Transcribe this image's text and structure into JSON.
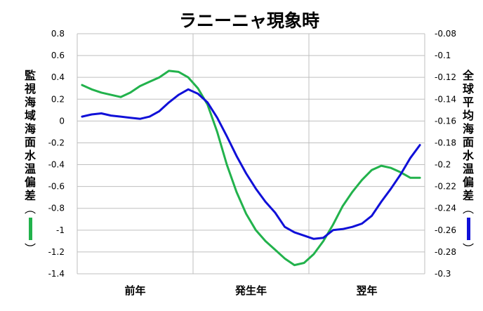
{
  "chart_data": {
    "type": "line",
    "title": "ラニーニャ現象時",
    "categories": [
      "前年",
      "発生年",
      "翌年"
    ],
    "colors": {
      "monitor": "#22b24c",
      "global": "#1010d8",
      "grid": "#bfbfbf"
    },
    "left_axis": {
      "label": "監視海域海面水温偏差",
      "paren_open": "︵",
      "paren_close": "︶",
      "ylim": [
        -1.4,
        0.8
      ],
      "ticks": [
        "0.8",
        "0.6",
        "0.4",
        "0.2",
        "0",
        "-0.2",
        "-0.4",
        "-0.6",
        "-0.8",
        "-1",
        "-1.2",
        "-1.4"
      ]
    },
    "right_axis": {
      "label": "全球平均海面水温偏差",
      "paren_open": "︵",
      "paren_close": "︶",
      "ylim": [
        -0.3,
        -0.08
      ],
      "ticks": [
        "-0.08",
        "-0.1",
        "-0.12",
        "-0.14",
        "-0.16",
        "-0.18",
        "-0.2",
        "-0.22",
        "-0.24",
        "-0.26",
        "-0.28",
        "-0.3"
      ]
    },
    "series": [
      {
        "axis": "left",
        "color": "#22b24c",
        "x": [
          1,
          2,
          3,
          4,
          5,
          6,
          7,
          8,
          9,
          10,
          11,
          12,
          13,
          14,
          15,
          16,
          17,
          18,
          19,
          20,
          21,
          22,
          23,
          24,
          25,
          26,
          27,
          28,
          29,
          30,
          31,
          32,
          33,
          34,
          35,
          36
        ],
        "values": [
          0.33,
          0.29,
          0.26,
          0.24,
          0.22,
          0.26,
          0.32,
          0.36,
          0.4,
          0.46,
          0.45,
          0.4,
          0.3,
          0.15,
          -0.1,
          -0.4,
          -0.65,
          -0.85,
          -1.0,
          -1.1,
          -1.18,
          -1.26,
          -1.32,
          -1.3,
          -1.22,
          -1.1,
          -0.95,
          -0.78,
          -0.65,
          -0.54,
          -0.45,
          -0.41,
          -0.43,
          -0.47,
          -0.52,
          -0.52
        ]
      },
      {
        "axis": "right",
        "color": "#1010d8",
        "x": [
          1,
          2,
          3,
          4,
          5,
          6,
          7,
          8,
          9,
          10,
          11,
          12,
          13,
          14,
          15,
          16,
          17,
          18,
          19,
          20,
          21,
          22,
          23,
          24,
          25,
          26,
          27,
          28,
          29,
          30,
          31,
          32,
          33,
          34,
          35,
          36
        ],
        "values": [
          -0.156,
          -0.154,
          -0.153,
          -0.155,
          -0.156,
          -0.157,
          -0.158,
          -0.156,
          -0.151,
          -0.143,
          -0.136,
          -0.131,
          -0.135,
          -0.143,
          -0.157,
          -0.174,
          -0.192,
          -0.208,
          -0.222,
          -0.234,
          -0.244,
          -0.257,
          -0.262,
          -0.265,
          -0.268,
          -0.267,
          -0.26,
          -0.259,
          -0.257,
          -0.254,
          -0.247,
          -0.234,
          -0.222,
          -0.209,
          -0.194,
          -0.182
        ]
      }
    ]
  }
}
